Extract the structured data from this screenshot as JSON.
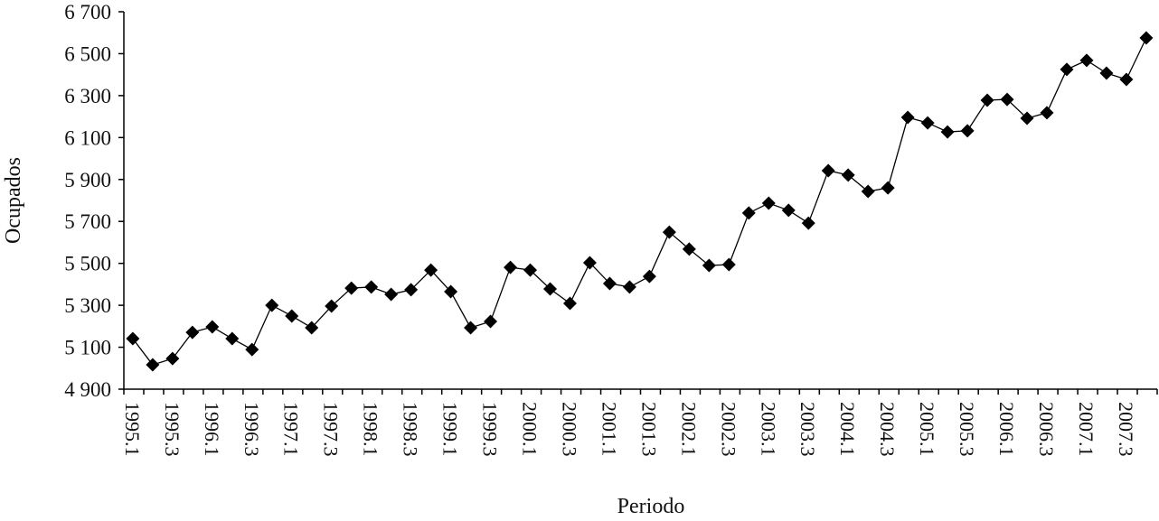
{
  "chart_data": {
    "type": "line",
    "title": "",
    "xlabel": "Periodo",
    "ylabel": "Ocupados",
    "ylim": [
      4900,
      6700
    ],
    "yticks": [
      4900,
      5100,
      5300,
      5500,
      5700,
      5900,
      6100,
      6300,
      6500,
      6700
    ],
    "ytick_labels": [
      "4 900",
      "5 100",
      "5 300",
      "5 500",
      "5 700",
      "5 900",
      "6 100",
      "6 300",
      "6 500",
      "6 700"
    ],
    "xtick_labels": [
      "1995.1",
      "1995.3",
      "1996.1",
      "1996.3",
      "1997.1",
      "1997.3",
      "1998.1",
      "1998.3",
      "1999.1",
      "1999.3",
      "2000.1",
      "2000.3",
      "2001.1",
      "2001.3",
      "2002.1",
      "2002.3",
      "2003.1",
      "2003.3",
      "2004.1",
      "2004.3",
      "2005.1",
      "2005.3",
      "2006.1",
      "2006.3",
      "2007.1",
      "2007.3"
    ],
    "grid": false,
    "marker": "diamond",
    "line_color": "#000000",
    "series": [
      {
        "name": "Ocupados",
        "x": [
          "1995.1",
          "1995.2",
          "1995.3",
          "1995.4",
          "1996.1",
          "1996.2",
          "1996.3",
          "1996.4",
          "1997.1",
          "1997.2",
          "1997.3",
          "1997.4",
          "1998.1",
          "1998.2",
          "1998.3",
          "1998.4",
          "1999.1",
          "1999.2",
          "1999.3",
          "1999.4",
          "2000.1",
          "2000.2",
          "2000.3",
          "2000.4",
          "2001.1",
          "2001.2",
          "2001.3",
          "2001.4",
          "2002.1",
          "2002.2",
          "2002.3",
          "2002.4",
          "2003.1",
          "2003.2",
          "2003.3",
          "2003.4",
          "2004.1",
          "2004.2",
          "2004.3",
          "2004.4",
          "2005.1",
          "2005.2",
          "2005.3",
          "2005.4",
          "2006.1",
          "2006.2",
          "2006.3",
          "2006.4",
          "2007.1",
          "2007.2",
          "2007.3",
          "2007.4"
        ],
        "values": [
          5141,
          5016,
          5046,
          5171,
          5197,
          5141,
          5089,
          5300,
          5249,
          5193,
          5296,
          5382,
          5387,
          5352,
          5374,
          5468,
          5365,
          5193,
          5223,
          5481,
          5468,
          5378,
          5309,
          5503,
          5404,
          5387,
          5438,
          5649,
          5568,
          5490,
          5494,
          5740,
          5787,
          5753,
          5692,
          5942,
          5921,
          5843,
          5860,
          6196,
          6170,
          6127,
          6132,
          6278,
          6282,
          6192,
          6218,
          6425,
          6468,
          6407,
          6377,
          6575
        ]
      }
    ]
  }
}
